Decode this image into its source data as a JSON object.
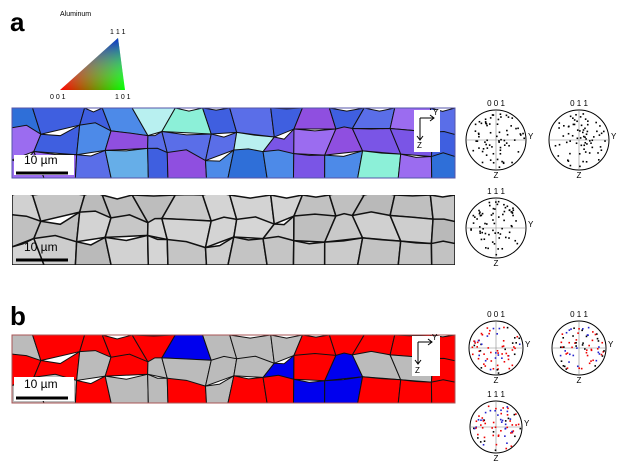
{
  "panel_a": {
    "label": "a",
    "legend_title": "Aluminum",
    "triangle_corners": [
      "1 1 1",
      "0 0 1",
      "1 0 1"
    ],
    "scale_bars": [
      "10 µm",
      "10 µm"
    ],
    "axes": {
      "horizontal": "Y",
      "vertical": "Z"
    },
    "pole_figures": [
      {
        "label": "0 0 1",
        "horizontal": "Y",
        "vertical": "Z"
      },
      {
        "label": "0 1 1",
        "horizontal": "Y",
        "vertical": "Z"
      },
      {
        "label": "1 1 1",
        "horizontal": "Y",
        "vertical": "Z"
      }
    ]
  },
  "panel_b": {
    "label": "b",
    "scale_bar": "10 µm",
    "axes": {
      "horizontal": "Y",
      "vertical": "Z"
    },
    "pole_figures": [
      {
        "label": "0 0 1",
        "horizontal": "Y",
        "vertical": "Z"
      },
      {
        "label": "0 1 1",
        "horizontal": "Y",
        "vertical": "Z"
      },
      {
        "label": "1 1 1",
        "horizontal": "Y",
        "vertical": "Z"
      }
    ]
  }
}
